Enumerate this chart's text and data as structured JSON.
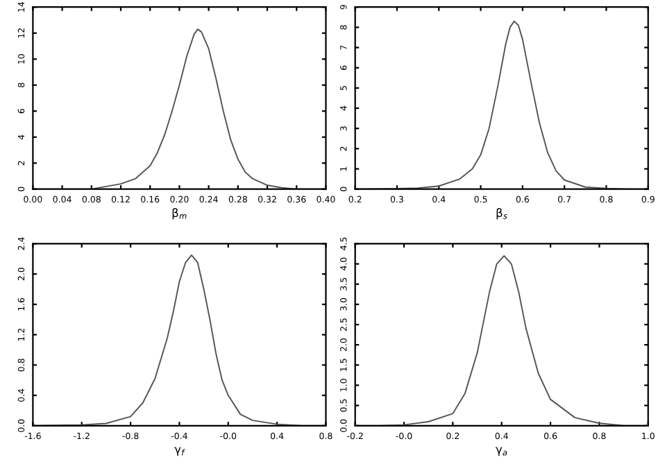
{
  "chart_data": [
    {
      "type": "line",
      "xlabel": "β$_{m}$",
      "xlim": [
        0.0,
        0.4
      ],
      "ylim": [
        0,
        14
      ],
      "xticks": [
        {
          "value": 0.0,
          "label": "0.00"
        },
        {
          "value": 0.04,
          "label": "0.04"
        },
        {
          "value": 0.08,
          "label": "0.08"
        },
        {
          "value": 0.12,
          "label": "0.12"
        },
        {
          "value": 0.16,
          "label": "0.16"
        },
        {
          "value": 0.2,
          "label": "0.20"
        },
        {
          "value": 0.24,
          "label": "0.24"
        },
        {
          "value": 0.28,
          "label": "0.28"
        },
        {
          "value": 0.32,
          "label": "0.32"
        },
        {
          "value": 0.36,
          "label": "0.36"
        },
        {
          "value": 0.4,
          "label": "0.40"
        }
      ],
      "yticks": [
        0,
        2,
        4,
        6,
        8,
        10,
        12,
        14
      ],
      "series": [
        {
          "color": "#555555",
          "x": [
            0.0,
            0.04,
            0.08,
            0.1,
            0.12,
            0.14,
            0.16,
            0.17,
            0.18,
            0.19,
            0.2,
            0.21,
            0.22,
            0.225,
            0.23,
            0.24,
            0.25,
            0.26,
            0.27,
            0.28,
            0.29,
            0.3,
            0.32,
            0.34,
            0.36,
            0.4
          ],
          "values": [
            0,
            0,
            0.0,
            0.2,
            0.4,
            0.8,
            1.8,
            2.8,
            4.2,
            6.0,
            8.0,
            10.2,
            11.9,
            12.3,
            12.1,
            10.8,
            8.5,
            6.0,
            3.8,
            2.3,
            1.3,
            0.8,
            0.3,
            0.1,
            0.0,
            0
          ]
        }
      ]
    },
    {
      "type": "line",
      "xlabel": "β$_{s}$",
      "xlim": [
        0.2,
        0.9
      ],
      "ylim": [
        0,
        9
      ],
      "xticks": [
        0.2,
        0.3,
        0.4,
        0.5,
        0.6,
        0.7,
        0.8,
        0.9
      ],
      "yticks": [
        0,
        1,
        2,
        3,
        4,
        5,
        6,
        7,
        8,
        9
      ],
      "series": [
        {
          "color": "#555555",
          "x": [
            0.2,
            0.3,
            0.35,
            0.4,
            0.45,
            0.48,
            0.5,
            0.52,
            0.54,
            0.56,
            0.57,
            0.58,
            0.59,
            0.6,
            0.62,
            0.64,
            0.66,
            0.68,
            0.7,
            0.75,
            0.8,
            0.85,
            0.9
          ],
          "values": [
            0,
            0.02,
            0.05,
            0.15,
            0.5,
            1.0,
            1.7,
            3.0,
            5.0,
            7.2,
            8.0,
            8.3,
            8.1,
            7.4,
            5.3,
            3.3,
            1.8,
            0.9,
            0.45,
            0.1,
            0.03,
            0,
            0
          ]
        }
      ]
    },
    {
      "type": "line",
      "xlabel": "γ$_{f}$",
      "xlim": [
        -1.6,
        0.8
      ],
      "ylim": [
        0.0,
        2.4
      ],
      "xticks": [
        -1.6,
        -1.2,
        -0.8,
        -0.4,
        {
          "value": 0.0,
          "label": "-0.0"
        },
        0.4,
        0.8
      ],
      "yticks": [
        {
          "value": 0,
          "label": "0.0"
        },
        0.4,
        0.8,
        1.2,
        1.6,
        {
          "value": 2,
          "label": "2.0"
        },
        2.4
      ],
      "series": [
        {
          "color": "#555555",
          "x": [
            -1.6,
            -1.2,
            -1.0,
            -0.8,
            -0.7,
            -0.6,
            -0.5,
            -0.45,
            -0.4,
            -0.35,
            -0.3,
            -0.25,
            -0.2,
            -0.15,
            -0.1,
            -0.05,
            0.0,
            0.1,
            0.2,
            0.4,
            0.6,
            0.8
          ],
          "values": [
            0,
            0.01,
            0.03,
            0.12,
            0.3,
            0.62,
            1.15,
            1.5,
            1.9,
            2.15,
            2.25,
            2.15,
            1.8,
            1.4,
            0.95,
            0.6,
            0.4,
            0.15,
            0.07,
            0.02,
            0,
            0
          ]
        }
      ]
    },
    {
      "type": "line",
      "xlabel": "γ$_{a}$",
      "xlim": [
        -0.2,
        1.0
      ],
      "ylim": [
        0.0,
        4.5
      ],
      "xticks": [
        -0.2,
        {
          "value": 0.0,
          "label": "-0.0"
        },
        0.2,
        0.4,
        0.6,
        0.8,
        {
          "value": 1,
          "label": "1.0"
        }
      ],
      "yticks": [
        {
          "value": 0,
          "label": "0.0"
        },
        0.5,
        {
          "value": 1,
          "label": "1.0"
        },
        1.5,
        {
          "value": 2,
          "label": "2.0"
        },
        2.5,
        {
          "value": 3,
          "label": "3.0"
        },
        3.5,
        {
          "value": 4,
          "label": "4.0"
        },
        4.5
      ],
      "series": [
        {
          "color": "#555555",
          "x": [
            -0.2,
            -0.1,
            0.0,
            0.1,
            0.2,
            0.25,
            0.3,
            0.35,
            0.38,
            0.41,
            0.44,
            0.47,
            0.5,
            0.55,
            0.6,
            0.7,
            0.8,
            0.9,
            1.0
          ],
          "values": [
            0,
            0,
            0.02,
            0.1,
            0.3,
            0.8,
            1.8,
            3.3,
            4.0,
            4.2,
            4.0,
            3.3,
            2.4,
            1.3,
            0.65,
            0.2,
            0.06,
            0,
            0
          ]
        }
      ]
    }
  ]
}
